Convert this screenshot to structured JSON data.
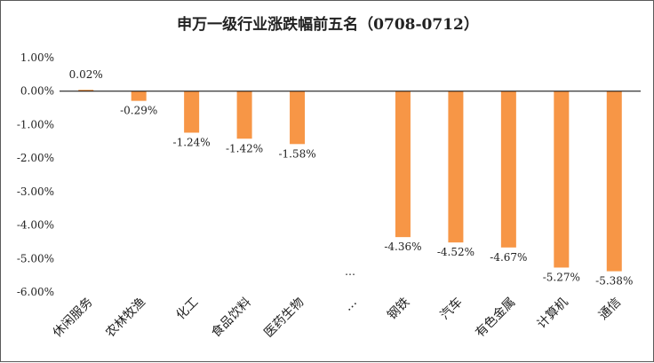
{
  "chart_data": {
    "type": "bar",
    "title": "申万一级行业涨跌幅前五名（0708-0712）",
    "categories": [
      "休闲服务",
      "农林牧渔",
      "化工",
      "食品饮料",
      "医药生物",
      "…",
      "钢铁",
      "汽车",
      "有色金属",
      "计算机",
      "通信"
    ],
    "values": [
      0.02,
      -0.29,
      -1.24,
      -1.42,
      -1.58,
      null,
      -4.36,
      -4.52,
      -4.67,
      -5.27,
      -5.38
    ],
    "data_labels": [
      "0.02%",
      "-0.29%",
      "-1.24%",
      "-1.42%",
      "-1.58%",
      "…",
      "-4.36%",
      "-4.52%",
      "-4.67%",
      "-5.27%",
      "-5.38%"
    ],
    "y_ticks": [
      1,
      0,
      -1,
      -2,
      -3,
      -4,
      -5,
      -6
    ],
    "y_tick_labels": [
      "1.00%",
      "0.00%",
      "-1.00%",
      "-2.00%",
      "-3.00%",
      "-4.00%",
      "-5.00%",
      "-6.00%"
    ],
    "ylim": [
      -6,
      1
    ],
    "xlabel": "",
    "ylabel": "",
    "grid": false,
    "legend": "none",
    "colors": {
      "bar": "#F79646",
      "axis": "#000000",
      "text": "#222222",
      "border": "#5a5a5a"
    }
  }
}
